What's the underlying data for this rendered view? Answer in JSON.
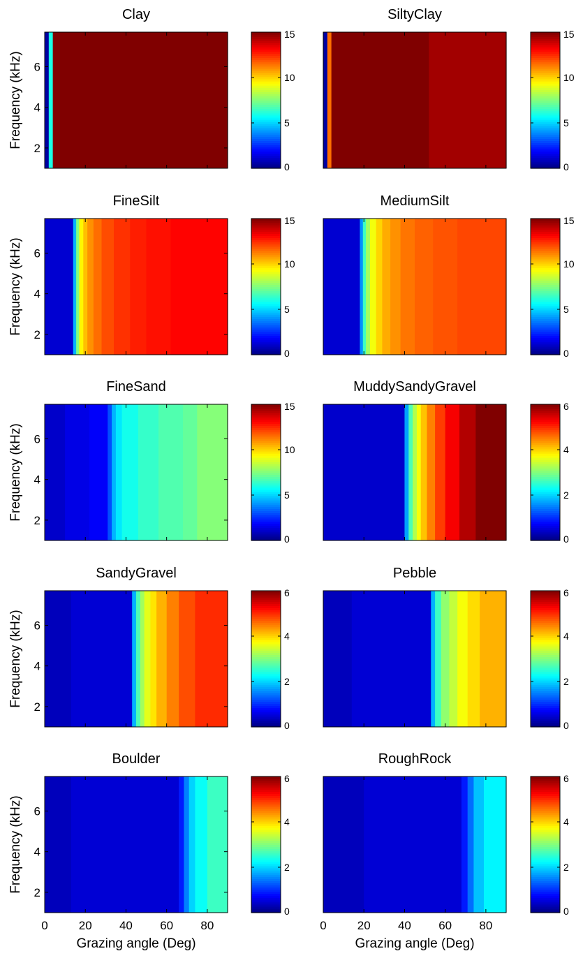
{
  "chart_data": [
    {
      "type": "heatmap",
      "title": "Clay",
      "ylabel": "Frequency (kHz)",
      "xlabel": "",
      "xlim": [
        0,
        90
      ],
      "ylim": [
        1,
        7.7
      ],
      "yticks": [
        2,
        4,
        6
      ],
      "xticks": [],
      "clim": [
        0,
        15
      ],
      "cbticks": [
        0,
        5,
        10,
        15
      ],
      "bands": [
        {
          "x0": 0,
          "x1": 2,
          "value": 0.5
        },
        {
          "x0": 2,
          "x1": 4,
          "value": 6
        },
        {
          "x0": 4,
          "x1": 90,
          "value": 15
        }
      ]
    },
    {
      "type": "heatmap",
      "title": "SiltyClay",
      "ylabel": "",
      "xlabel": "",
      "xlim": [
        0,
        90
      ],
      "ylim": [
        1,
        7.7
      ],
      "yticks": [],
      "xticks": [],
      "clim": [
        0,
        15
      ],
      "cbticks": [
        0,
        5,
        10,
        15
      ],
      "bands": [
        {
          "x0": 0,
          "x1": 2,
          "value": 0.5
        },
        {
          "x0": 2,
          "x1": 4,
          "value": 11.5
        },
        {
          "x0": 4,
          "x1": 52,
          "value": 15
        },
        {
          "x0": 52,
          "x1": 90,
          "value": 14.5
        }
      ]
    },
    {
      "type": "heatmap",
      "title": "FineSilt",
      "ylabel": "Frequency (kHz)",
      "xlabel": "",
      "xlim": [
        0,
        90
      ],
      "ylim": [
        1,
        7.7
      ],
      "yticks": [
        2,
        4,
        6
      ],
      "xticks": [],
      "clim": [
        0,
        15
      ],
      "cbticks": [
        0,
        5,
        10,
        15
      ],
      "bands": [
        {
          "x0": 0,
          "x1": 14,
          "value": 1.2
        },
        {
          "x0": 14,
          "x1": 15.5,
          "value": 4.5
        },
        {
          "x0": 15.5,
          "x1": 17,
          "value": 7.5
        },
        {
          "x0": 17,
          "x1": 19,
          "value": 9.5
        },
        {
          "x0": 19,
          "x1": 21,
          "value": 10.3
        },
        {
          "x0": 21,
          "x1": 24,
          "value": 11
        },
        {
          "x0": 24,
          "x1": 28,
          "value": 11.5
        },
        {
          "x0": 28,
          "x1": 34,
          "value": 12
        },
        {
          "x0": 34,
          "x1": 42,
          "value": 12.4
        },
        {
          "x0": 42,
          "x1": 50,
          "value": 12.7
        },
        {
          "x0": 50,
          "x1": 62,
          "value": 12.9
        },
        {
          "x0": 62,
          "x1": 90,
          "value": 13.1
        }
      ]
    },
    {
      "type": "heatmap",
      "title": "MediumSilt",
      "ylabel": "",
      "xlabel": "",
      "xlim": [
        0,
        90
      ],
      "ylim": [
        1,
        7.7
      ],
      "yticks": [],
      "xticks": [],
      "clim": [
        0,
        15
      ],
      "cbticks": [
        0,
        5,
        10,
        15
      ],
      "bands": [
        {
          "x0": 0,
          "x1": 18,
          "value": 1.2
        },
        {
          "x0": 18,
          "x1": 19.5,
          "value": 4
        },
        {
          "x0": 19.5,
          "x1": 21,
          "value": 6.5
        },
        {
          "x0": 21,
          "x1": 23,
          "value": 8
        },
        {
          "x0": 23,
          "x1": 26,
          "value": 9.2
        },
        {
          "x0": 26,
          "x1": 29,
          "value": 10
        },
        {
          "x0": 29,
          "x1": 33,
          "value": 10.6
        },
        {
          "x0": 33,
          "x1": 38,
          "value": 11
        },
        {
          "x0": 38,
          "x1": 45,
          "value": 11.4
        },
        {
          "x0": 45,
          "x1": 54,
          "value": 11.7
        },
        {
          "x0": 54,
          "x1": 66,
          "value": 11.9
        },
        {
          "x0": 66,
          "x1": 90,
          "value": 12.1
        }
      ]
    },
    {
      "type": "heatmap",
      "title": "FineSand",
      "ylabel": "Frequency (kHz)",
      "xlabel": "",
      "xlim": [
        0,
        90
      ],
      "ylim": [
        1,
        7.7
      ],
      "yticks": [
        2,
        4,
        6
      ],
      "xticks": [],
      "clim": [
        0,
        15
      ],
      "cbticks": [
        0,
        5,
        10,
        15
      ],
      "bands": [
        {
          "x0": 0,
          "x1": 10,
          "value": 1.1
        },
        {
          "x0": 10,
          "x1": 22,
          "value": 1.5
        },
        {
          "x0": 22,
          "x1": 31,
          "value": 1.8
        },
        {
          "x0": 31,
          "x1": 33,
          "value": 3
        },
        {
          "x0": 33,
          "x1": 35,
          "value": 4.5
        },
        {
          "x0": 35,
          "x1": 38,
          "value": 5.3
        },
        {
          "x0": 38,
          "x1": 46,
          "value": 5.9
        },
        {
          "x0": 46,
          "x1": 56,
          "value": 6.4
        },
        {
          "x0": 56,
          "x1": 68,
          "value": 6.8
        },
        {
          "x0": 68,
          "x1": 75,
          "value": 7.1
        },
        {
          "x0": 75,
          "x1": 90,
          "value": 7.6
        }
      ]
    },
    {
      "type": "heatmap",
      "title": "MuddySandyGravel",
      "ylabel": "",
      "xlabel": "",
      "xlim": [
        0,
        90
      ],
      "ylim": [
        1,
        7.7
      ],
      "yticks": [],
      "xticks": [],
      "clim": [
        0,
        6
      ],
      "cbticks": [
        0,
        2,
        4,
        6
      ],
      "bands": [
        {
          "x0": 0,
          "x1": 40,
          "value": 0.45
        },
        {
          "x0": 40,
          "x1": 42,
          "value": 1.7
        },
        {
          "x0": 42,
          "x1": 44,
          "value": 2.7
        },
        {
          "x0": 44,
          "x1": 46,
          "value": 3.3
        },
        {
          "x0": 46,
          "x1": 48,
          "value": 3.7
        },
        {
          "x0": 48,
          "x1": 51,
          "value": 4.1
        },
        {
          "x0": 51,
          "x1": 55,
          "value": 4.5
        },
        {
          "x0": 55,
          "x1": 60,
          "value": 4.9
        },
        {
          "x0": 60,
          "x1": 67,
          "value": 5.3
        },
        {
          "x0": 67,
          "x1": 75,
          "value": 5.7
        },
        {
          "x0": 75,
          "x1": 90,
          "value": 6.0
        }
      ]
    },
    {
      "type": "heatmap",
      "title": "SandyGravel",
      "ylabel": "Frequency (kHz)",
      "xlabel": "",
      "xlim": [
        0,
        90
      ],
      "ylim": [
        1,
        7.7
      ],
      "yticks": [
        2,
        4,
        6
      ],
      "xticks": [],
      "clim": [
        0,
        6
      ],
      "cbticks": [
        0,
        2,
        4,
        6
      ],
      "bands": [
        {
          "x0": 0,
          "x1": 13,
          "value": 0.35
        },
        {
          "x0": 13,
          "x1": 43,
          "value": 0.5
        },
        {
          "x0": 43,
          "x1": 45,
          "value": 1.8
        },
        {
          "x0": 45,
          "x1": 47,
          "value": 2.7
        },
        {
          "x0": 47,
          "x1": 49,
          "value": 3.2
        },
        {
          "x0": 49,
          "x1": 52,
          "value": 3.6
        },
        {
          "x0": 52,
          "x1": 55,
          "value": 3.9
        },
        {
          "x0": 55,
          "x1": 60,
          "value": 4.2
        },
        {
          "x0": 60,
          "x1": 66,
          "value": 4.5
        },
        {
          "x0": 66,
          "x1": 74,
          "value": 4.8
        },
        {
          "x0": 74,
          "x1": 90,
          "value": 5.0
        }
      ]
    },
    {
      "type": "heatmap",
      "title": "Pebble",
      "ylabel": "",
      "xlabel": "",
      "xlim": [
        0,
        90
      ],
      "ylim": [
        1,
        7.7
      ],
      "yticks": [],
      "xticks": [],
      "clim": [
        0,
        6
      ],
      "cbticks": [
        0,
        2,
        4,
        6
      ],
      "bands": [
        {
          "x0": 0,
          "x1": 14,
          "value": 0.35
        },
        {
          "x0": 14,
          "x1": 53,
          "value": 0.5
        },
        {
          "x0": 53,
          "x1": 55,
          "value": 1.8
        },
        {
          "x0": 55,
          "x1": 58,
          "value": 2.6
        },
        {
          "x0": 58,
          "x1": 62,
          "value": 3.1
        },
        {
          "x0": 62,
          "x1": 66,
          "value": 3.4
        },
        {
          "x0": 66,
          "x1": 71,
          "value": 3.7
        },
        {
          "x0": 71,
          "x1": 77,
          "value": 3.95
        },
        {
          "x0": 77,
          "x1": 90,
          "value": 4.2
        }
      ]
    },
    {
      "type": "heatmap",
      "title": "Boulder",
      "ylabel": "Frequency (kHz)",
      "xlabel": "Grazing angle (Deg)",
      "xlim": [
        0,
        90
      ],
      "ylim": [
        1,
        7.7
      ],
      "yticks": [
        2,
        4,
        6
      ],
      "xticks": [
        0,
        20,
        40,
        60,
        80
      ],
      "clim": [
        0,
        6
      ],
      "cbticks": [
        0,
        2,
        4,
        6
      ],
      "bands": [
        {
          "x0": 0,
          "x1": 13,
          "value": 0.35
        },
        {
          "x0": 13,
          "x1": 66,
          "value": 0.5
        },
        {
          "x0": 66,
          "x1": 68.5,
          "value": 0.9
        },
        {
          "x0": 68.5,
          "x1": 71,
          "value": 1.5
        },
        {
          "x0": 71,
          "x1": 74,
          "value": 2.0
        },
        {
          "x0": 74,
          "x1": 80,
          "value": 2.3
        },
        {
          "x0": 80,
          "x1": 90,
          "value": 2.6
        }
      ]
    },
    {
      "type": "heatmap",
      "title": "RoughRock",
      "ylabel": "",
      "xlabel": "Grazing angle (Deg)",
      "xlim": [
        0,
        90
      ],
      "ylim": [
        1,
        7.7
      ],
      "yticks": [],
      "xticks": [
        0,
        20,
        40,
        60,
        80
      ],
      "clim": [
        0,
        6
      ],
      "cbticks": [
        0,
        2,
        4,
        6
      ],
      "bands": [
        {
          "x0": 0,
          "x1": 20,
          "value": 0.35
        },
        {
          "x0": 20,
          "x1": 68,
          "value": 0.5
        },
        {
          "x0": 68,
          "x1": 71,
          "value": 0.9
        },
        {
          "x0": 71,
          "x1": 74,
          "value": 1.4
        },
        {
          "x0": 74,
          "x1": 79,
          "value": 1.9
        },
        {
          "x0": 79,
          "x1": 90,
          "value": 2.2
        }
      ]
    }
  ]
}
